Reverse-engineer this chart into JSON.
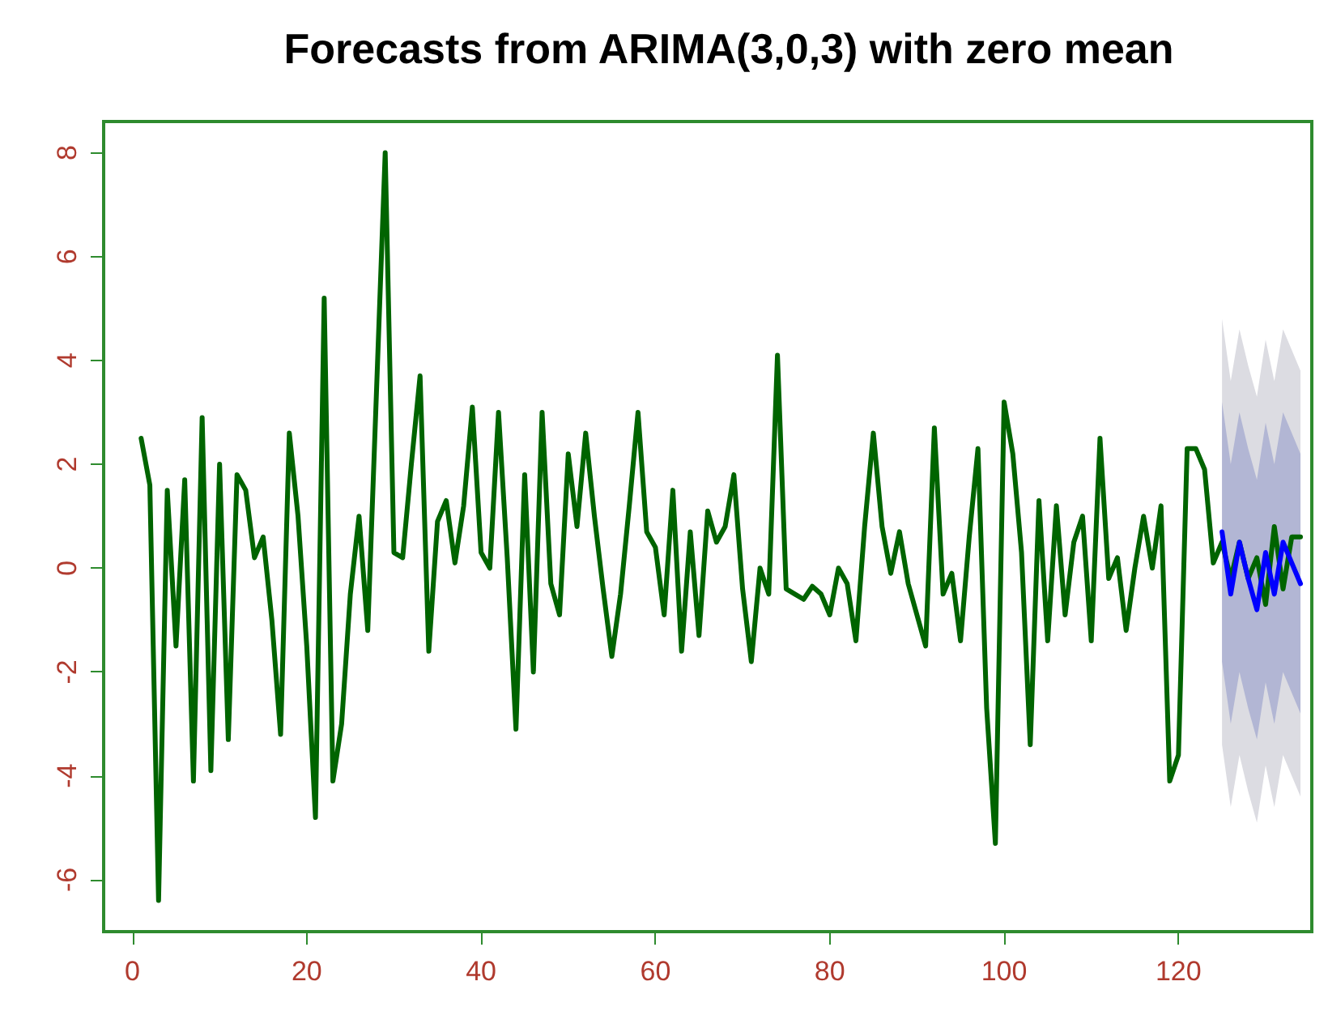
{
  "chart_data": {
    "type": "line",
    "title": "Forecasts from ARIMA(3,0,3) with zero mean",
    "x": [
      1,
      2,
      3,
      4,
      5,
      6,
      7,
      8,
      9,
      10,
      11,
      12,
      13,
      14,
      15,
      16,
      17,
      18,
      19,
      20,
      21,
      22,
      23,
      24,
      25,
      26,
      27,
      28,
      29,
      30,
      31,
      32,
      33,
      34,
      35,
      36,
      37,
      38,
      39,
      40,
      41,
      42,
      43,
      44,
      45,
      46,
      47,
      48,
      49,
      50,
      51,
      52,
      53,
      54,
      55,
      56,
      57,
      58,
      59,
      60,
      61,
      62,
      63,
      64,
      65,
      66,
      67,
      68,
      69,
      70,
      71,
      72,
      73,
      74,
      75,
      76,
      77,
      78,
      79,
      80,
      81,
      82,
      83,
      84,
      85,
      86,
      87,
      88,
      89,
      90,
      91,
      92,
      93,
      94,
      95,
      96,
      97,
      98,
      99,
      100,
      101,
      102,
      103,
      104,
      105,
      106,
      107,
      108,
      109,
      110,
      111,
      112,
      113,
      114,
      115,
      116,
      117,
      118,
      119,
      120,
      121,
      122,
      123,
      124,
      125,
      126,
      127,
      128,
      129,
      130,
      131,
      132,
      133,
      134
    ],
    "series": [
      {
        "type": "area",
        "color": "#dcdce2",
        "x": [
          125,
          126,
          127,
          128,
          129,
          130,
          131,
          132,
          133,
          134
        ],
        "values": [
          null,
          null,
          null,
          null,
          null,
          null,
          null,
          null,
          null,
          null
        ],
        "lower": [
          -3.4,
          -4.6,
          -3.6,
          -4.3,
          -4.9,
          -3.8,
          -4.6,
          -3.6,
          -4.0,
          -4.4
        ],
        "upper": [
          4.8,
          3.6,
          4.6,
          3.9,
          3.3,
          4.4,
          3.6,
          4.6,
          4.2,
          3.8
        ]
      },
      {
        "type": "area",
        "color": "#b2b6d4",
        "x": [
          125,
          126,
          127,
          128,
          129,
          130,
          131,
          132,
          133,
          134
        ],
        "values": [
          null,
          null,
          null,
          null,
          null,
          null,
          null,
          null,
          null,
          null
        ],
        "lower": [
          -1.8,
          -3.0,
          -2.0,
          -2.7,
          -3.3,
          -2.2,
          -3.0,
          -2.0,
          -2.4,
          -2.8
        ],
        "upper": [
          3.2,
          2.0,
          3.0,
          2.3,
          1.7,
          2.8,
          2.0,
          3.0,
          2.6,
          2.2
        ]
      },
      {
        "color": "#006400",
        "values": [
          2.5,
          1.6,
          -6.4,
          1.5,
          -1.5,
          1.7,
          -4.1,
          2.9,
          -3.9,
          2.0,
          -3.3,
          1.8,
          1.5,
          0.2,
          0.6,
          -1.0,
          -3.2,
          2.6,
          1.0,
          -1.5,
          -4.8,
          5.2,
          -4.1,
          -3.0,
          -0.5,
          1.0,
          -1.2,
          3.4,
          8.0,
          0.3,
          0.2,
          2.0,
          3.7,
          -1.6,
          0.9,
          1.3,
          0.1,
          1.2,
          3.1,
          0.3,
          0.0,
          3.0,
          0.2,
          -3.1,
          1.8,
          -2.0,
          3.0,
          -0.3,
          -0.9,
          2.2,
          0.8,
          2.6,
          1.0,
          -0.4,
          -1.7,
          -0.5,
          1.2,
          3.0,
          0.7,
          0.4,
          -0.9,
          1.5,
          -1.6,
          0.7,
          -1.3,
          1.1,
          0.5,
          0.8,
          1.8,
          -0.4,
          -1.8,
          0.0,
          -0.5,
          4.1,
          -0.4,
          -0.5,
          -0.6,
          -0.35,
          -0.5,
          -0.9,
          0.0,
          -0.3,
          -1.4,
          0.8,
          2.6,
          0.8,
          -0.1,
          0.7,
          -0.3,
          -0.9,
          -1.5,
          2.7,
          -0.5,
          -0.1,
          -1.4,
          0.6,
          2.3,
          -2.7,
          -5.3,
          3.2,
          2.2,
          0.3,
          -3.4,
          1.3,
          -1.4,
          1.2,
          -0.9,
          0.5,
          1.0,
          -1.4,
          2.5,
          -0.2,
          0.2,
          -1.2,
          0.0,
          1.0,
          0.0,
          1.2,
          -4.1,
          -3.6,
          2.3,
          2.3,
          1.9,
          0.1,
          0.5,
          -0.2,
          0.5,
          -0.2,
          0.2,
          -0.7,
          0.8,
          -0.4,
          0.6,
          0.6
        ]
      },
      {
        "color": "#0000ff",
        "x": [
          125,
          126,
          127,
          128,
          129,
          130,
          131,
          132,
          133,
          134
        ],
        "values": [
          0.7,
          -0.5,
          0.5,
          -0.2,
          -0.8,
          0.3,
          -0.5,
          0.5,
          0.1,
          -0.3
        ]
      }
    ],
    "xlim": [
      -3.3,
      135.3
    ],
    "ylim": [
      -7.0,
      8.6
    ],
    "xticks": [
      0,
      20,
      40,
      60,
      80,
      100,
      120
    ],
    "yticks": [
      -6,
      -4,
      -2,
      0,
      2,
      4,
      6,
      8
    ],
    "marker": "none",
    "line_style": "solid"
  }
}
